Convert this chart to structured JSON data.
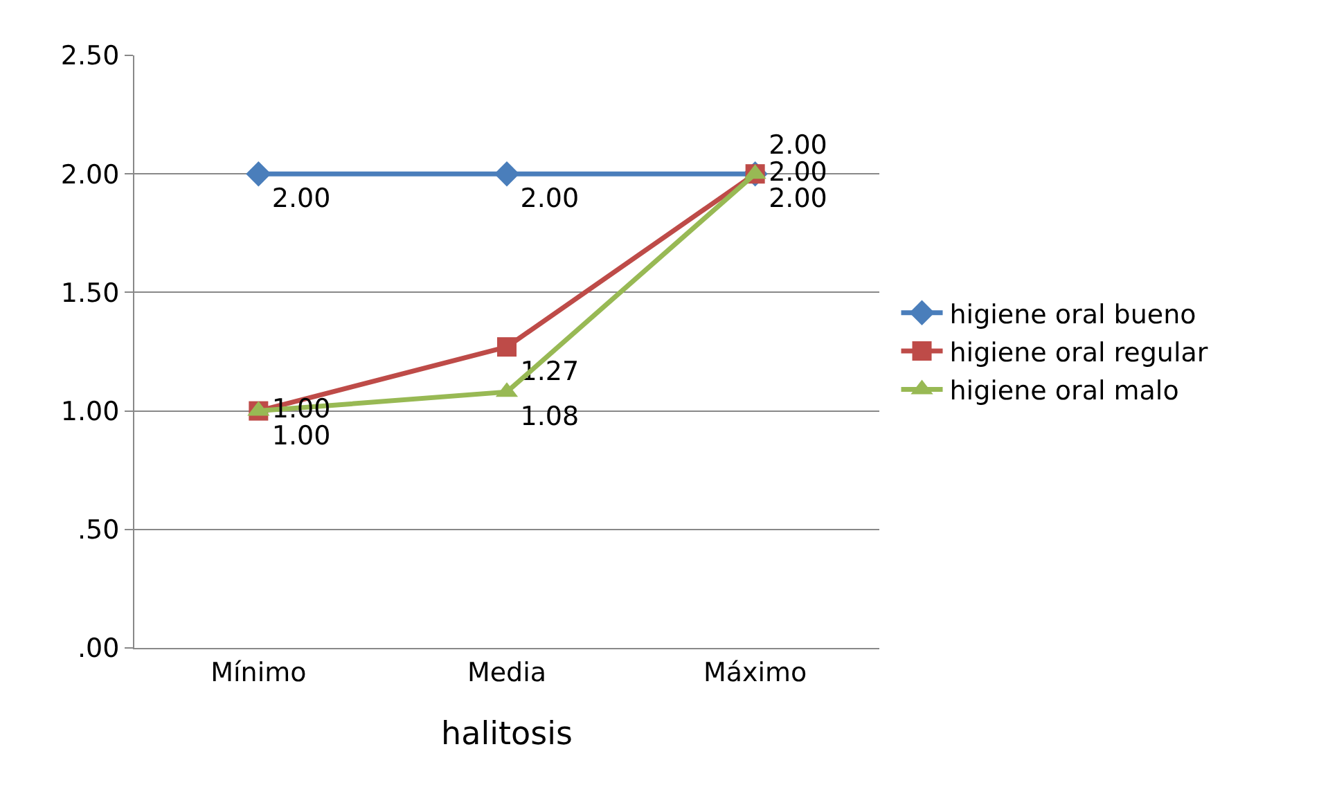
{
  "chart_data": {
    "type": "line",
    "xlabel": "halitosis",
    "categories": [
      "Mínimo",
      "Media",
      "Máximo"
    ],
    "series": [
      {
        "name": "higiene oral bueno",
        "color": "#4a7ebb",
        "marker": "diamond",
        "values": [
          2.0,
          2.0,
          2.0
        ],
        "value_labels": [
          "2.00",
          "2.00",
          "2.00"
        ]
      },
      {
        "name": "higiene oral regular",
        "color": "#be4b48",
        "marker": "square",
        "values": [
          1.0,
          1.27,
          2.0
        ],
        "value_labels": [
          "1.00",
          "1.27",
          "2.00"
        ]
      },
      {
        "name": "higiene oral malo",
        "color": "#98b954",
        "marker": "triangle",
        "values": [
          1.0,
          1.08,
          2.0
        ],
        "value_labels": [
          "1.00",
          "1.08",
          "2.00"
        ]
      }
    ],
    "ylim": [
      0,
      2.5
    ],
    "yticks": [
      {
        "value": 0,
        "label": ".00"
      },
      {
        "value": 0.5,
        "label": ".50"
      },
      {
        "value": 1,
        "label": "1.00"
      },
      {
        "value": 1.5,
        "label": "1.50"
      },
      {
        "value": 2,
        "label": "2.00"
      },
      {
        "value": 2.5,
        "label": "2.50"
      }
    ],
    "grid": "y",
    "legend": "right",
    "line_style": "solid"
  }
}
